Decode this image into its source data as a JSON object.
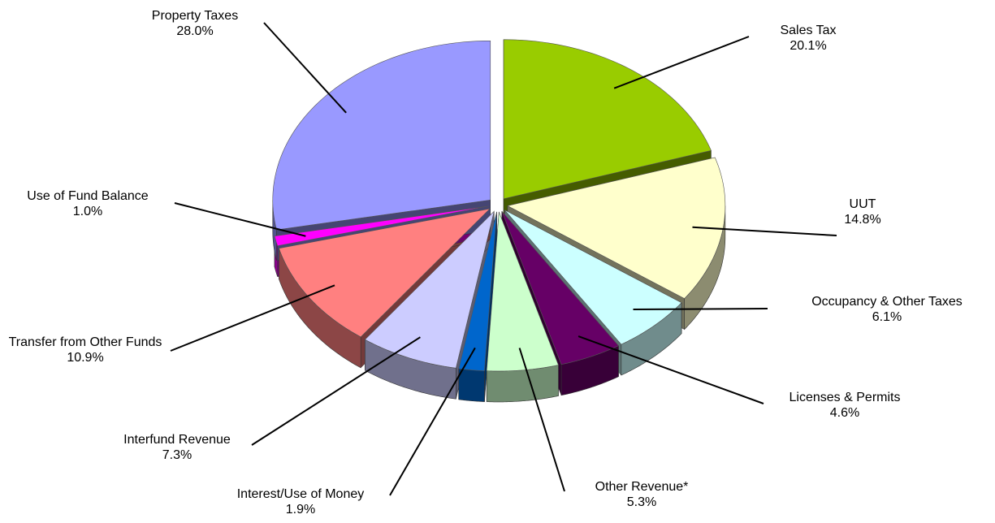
{
  "chart_data": {
    "type": "pie",
    "categories": [
      "Sales Tax",
      "UUT",
      "Occupancy & Other Taxes",
      "Licenses & Permits",
      "Other Revenue*",
      "Interest/Use  of Money",
      "Interfund Revenue",
      "Transfer from Other Funds",
      "Use of Fund Balance",
      "Property Taxes"
    ],
    "values": [
      20.1,
      14.8,
      6.1,
      4.6,
      5.3,
      1.9,
      7.3,
      10.9,
      1.0,
      28.0
    ],
    "value_labels": [
      "20.1%",
      "14.8%",
      "6.1%",
      "4.6%",
      "5.3%",
      "1.9%",
      "7.3%",
      "10.9%",
      "1.0%",
      "28.0%"
    ],
    "colors": [
      "#99cc00",
      "#ffffcc",
      "#ccffff",
      "#660066",
      "#ccffcc",
      "#0066cc",
      "#ccccff",
      "#ff8080",
      "#ff00ff",
      "#9999ff"
    ]
  }
}
